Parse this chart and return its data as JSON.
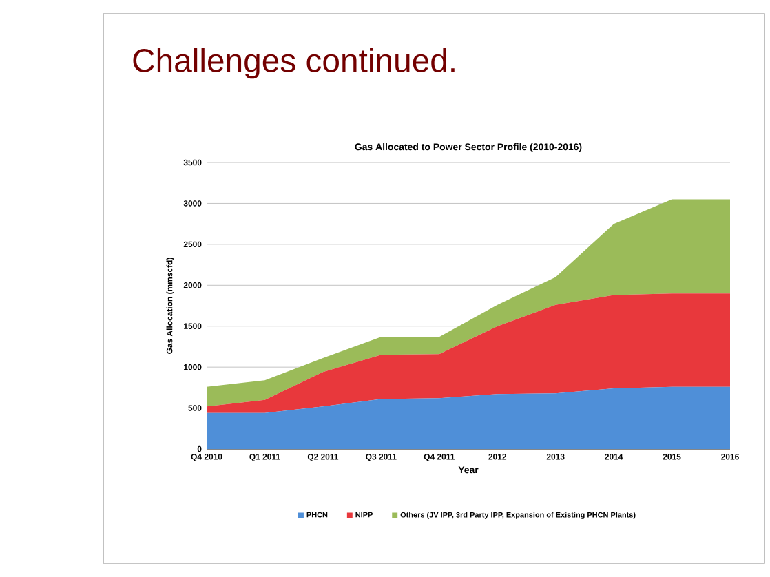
{
  "chart_data": {
    "type": "area",
    "stacked": true,
    "title": "Gas Allocated to Power Sector Profile (2010-2016)",
    "annotations": [
      "Challenges continued."
    ],
    "xlabel": "Year",
    "ylabel": "Gas Allocation (mmscfd)",
    "categories": [
      "Q4 2010",
      "Q1 2011",
      "Q2 2011",
      "Q3 2011",
      "Q4 2011",
      "2012",
      "2013",
      "2014",
      "2015",
      "2016"
    ],
    "series": [
      {
        "name": "PHCN",
        "color": "#4f8fd8",
        "values": [
          440,
          440,
          520,
          610,
          620,
          670,
          680,
          740,
          760,
          760
        ]
      },
      {
        "name": "NIPP",
        "color": "#e8383c",
        "values": [
          80,
          160,
          420,
          540,
          540,
          830,
          1080,
          1140,
          1140,
          1140
        ]
      },
      {
        "name": "Others (JV IPP, 3rd Party IPP, Expansion of Existing PHCN Plants)",
        "color": "#9bbb59",
        "values": [
          240,
          240,
          170,
          220,
          210,
          260,
          340,
          870,
          1150,
          1150
        ]
      }
    ],
    "ylim": [
      0,
      3500
    ],
    "yticks": [
      0,
      500,
      1000,
      1500,
      2000,
      2500,
      3000,
      3500
    ],
    "grid": "y",
    "legend": "bottom"
  }
}
